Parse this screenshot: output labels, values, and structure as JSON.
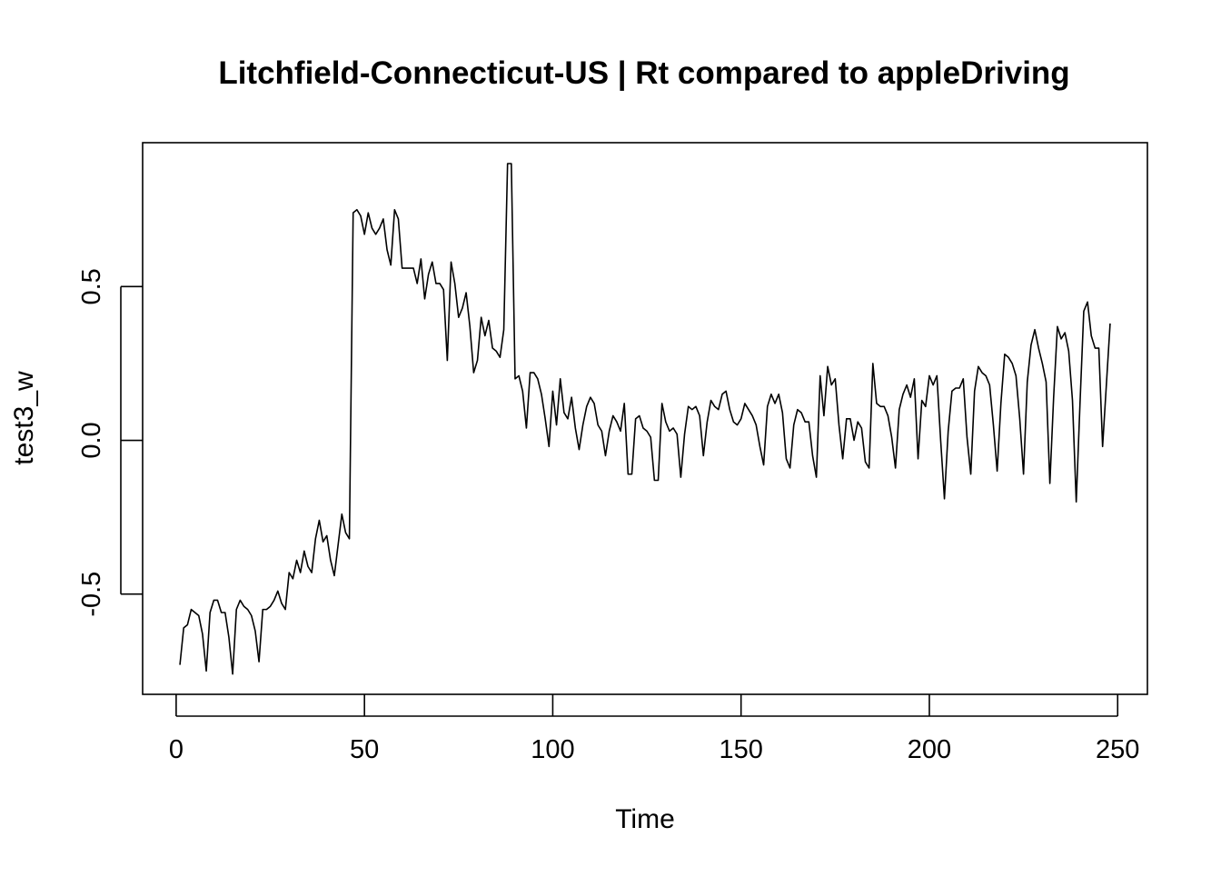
{
  "chart_data": {
    "type": "line",
    "title": "Litchfield-Connecticut-US | Rt compared to appleDriving",
    "xlabel": "Time",
    "ylabel": "test3_w",
    "xlim": [
      -8.9,
      257.9
    ],
    "ylim": [
      -0.826,
      0.968
    ],
    "xticks": [
      0,
      50,
      100,
      150,
      200,
      250
    ],
    "xtick_labels": [
      "0",
      "50",
      "100",
      "150",
      "200",
      "250"
    ],
    "yticks": [
      -0.5,
      0.0,
      0.5
    ],
    "ytick_labels": [
      "-0.5",
      "0.0",
      "0.5"
    ],
    "grid": false,
    "legend": "none",
    "line_color": "#000000",
    "x": [
      1,
      2,
      3,
      4,
      5,
      6,
      7,
      8,
      9,
      10,
      11,
      12,
      13,
      14,
      15,
      16,
      17,
      18,
      19,
      20,
      21,
      22,
      23,
      24,
      25,
      26,
      27,
      28,
      29,
      30,
      31,
      32,
      33,
      34,
      35,
      36,
      37,
      38,
      39,
      40,
      41,
      42,
      43,
      44,
      45,
      46,
      47,
      48,
      49,
      50,
      51,
      52,
      53,
      54,
      55,
      56,
      57,
      58,
      59,
      60,
      61,
      62,
      63,
      64,
      65,
      66,
      67,
      68,
      69,
      70,
      71,
      72,
      73,
      74,
      75,
      76,
      77,
      78,
      79,
      80,
      81,
      82,
      83,
      84,
      85,
      86,
      87,
      88,
      89,
      90,
      91,
      92,
      93,
      94,
      95,
      96,
      97,
      98,
      99,
      100,
      101,
      102,
      103,
      104,
      105,
      106,
      107,
      108,
      109,
      110,
      111,
      112,
      113,
      114,
      115,
      116,
      117,
      118,
      119,
      120,
      121,
      122,
      123,
      124,
      125,
      126,
      127,
      128,
      129,
      130,
      131,
      132,
      133,
      134,
      135,
      136,
      137,
      138,
      139,
      140,
      141,
      142,
      143,
      144,
      145,
      146,
      147,
      148,
      149,
      150,
      151,
      152,
      153,
      154,
      155,
      156,
      157,
      158,
      159,
      160,
      161,
      162,
      163,
      164,
      165,
      166,
      167,
      168,
      169,
      170,
      171,
      172,
      173,
      174,
      175,
      176,
      177,
      178,
      179,
      180,
      181,
      182,
      183,
      184,
      185,
      186,
      187,
      188,
      189,
      190,
      191,
      192,
      193,
      194,
      195,
      196,
      197,
      198,
      199,
      200,
      201,
      202,
      203,
      204,
      205,
      206,
      207,
      208,
      209,
      210,
      211,
      212,
      213,
      214,
      215,
      216,
      217,
      218,
      219,
      220,
      221,
      222,
      223,
      224,
      225,
      226,
      227,
      228,
      229,
      230,
      231,
      232,
      233,
      234,
      235,
      236,
      237,
      238,
      239,
      240,
      241,
      242,
      243,
      244,
      245,
      246,
      247,
      248
    ],
    "values": [
      -0.73,
      -0.61,
      -0.6,
      -0.55,
      -0.56,
      -0.57,
      -0.63,
      -0.75,
      -0.56,
      -0.52,
      -0.52,
      -0.56,
      -0.56,
      -0.64,
      -0.76,
      -0.55,
      -0.52,
      -0.54,
      -0.55,
      -0.57,
      -0.62,
      -0.72,
      -0.55,
      -0.55,
      -0.54,
      -0.52,
      -0.49,
      -0.53,
      -0.55,
      -0.43,
      -0.45,
      -0.39,
      -0.43,
      -0.36,
      -0.41,
      -0.43,
      -0.32,
      -0.26,
      -0.33,
      -0.31,
      -0.39,
      -0.44,
      -0.34,
      -0.24,
      -0.3,
      -0.32,
      0.74,
      0.75,
      0.73,
      0.67,
      0.74,
      0.69,
      0.67,
      0.69,
      0.72,
      0.62,
      0.57,
      0.75,
      0.72,
      0.56,
      0.56,
      0.56,
      0.56,
      0.51,
      0.59,
      0.46,
      0.54,
      0.58,
      0.51,
      0.51,
      0.49,
      0.26,
      0.58,
      0.51,
      0.4,
      0.43,
      0.48,
      0.37,
      0.22,
      0.26,
      0.4,
      0.34,
      0.39,
      0.3,
      0.29,
      0.27,
      0.36,
      0.9,
      0.9,
      0.2,
      0.21,
      0.16,
      0.04,
      0.22,
      0.22,
      0.2,
      0.15,
      0.07,
      -0.02,
      0.16,
      0.05,
      0.2,
      0.09,
      0.07,
      0.14,
      0.04,
      -0.03,
      0.05,
      0.11,
      0.14,
      0.12,
      0.05,
      0.03,
      -0.05,
      0.03,
      0.08,
      0.06,
      0.03,
      0.12,
      -0.11,
      -0.11,
      0.07,
      0.08,
      0.04,
      0.03,
      0.01,
      -0.13,
      -0.13,
      0.12,
      0.06,
      0.03,
      0.04,
      0.02,
      -0.12,
      0.02,
      0.11,
      0.1,
      0.11,
      0.08,
      -0.05,
      0.06,
      0.13,
      0.11,
      0.1,
      0.15,
      0.16,
      0.1,
      0.06,
      0.05,
      0.07,
      0.12,
      0.1,
      0.08,
      0.05,
      -0.02,
      -0.08,
      0.11,
      0.15,
      0.12,
      0.15,
      0.09,
      -0.06,
      -0.09,
      0.05,
      0.1,
      0.09,
      0.06,
      0.06,
      -0.05,
      -0.12,
      0.21,
      0.08,
      0.24,
      0.18,
      0.2,
      0.05,
      -0.06,
      0.07,
      0.07,
      0.0,
      0.06,
      0.04,
      -0.07,
      -0.09,
      0.25,
      0.12,
      0.11,
      0.11,
      0.08,
      0.01,
      -0.09,
      0.1,
      0.15,
      0.18,
      0.14,
      0.2,
      -0.06,
      0.13,
      0.11,
      0.21,
      0.18,
      0.21,
      0.0,
      -0.19,
      0.03,
      0.16,
      0.17,
      0.17,
      0.2,
      0.01,
      -0.11,
      0.16,
      0.24,
      0.22,
      0.21,
      0.18,
      0.05,
      -0.1,
      0.12,
      0.28,
      0.27,
      0.25,
      0.21,
      0.07,
      -0.11,
      0.19,
      0.31,
      0.36,
      0.3,
      0.25,
      0.19,
      -0.14,
      0.14,
      0.37,
      0.33,
      0.35,
      0.29,
      0.13,
      -0.2,
      0.12,
      0.42,
      0.45,
      0.34,
      0.3,
      0.3,
      -0.02,
      0.18,
      0.38
    ]
  }
}
